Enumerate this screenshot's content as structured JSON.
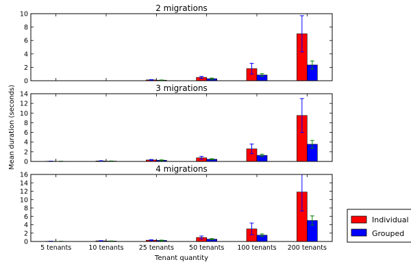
{
  "chart_data": {
    "type": "bar",
    "ylabel": "Mean duration (seconds)",
    "xlabel": "Tenant quantity",
    "categories": [
      "5 tenants",
      "10 tenants",
      "25 tenants",
      "50 tenants",
      "100 tenants",
      "200 tenants"
    ],
    "legend": {
      "position": "right",
      "items": [
        "Individual",
        "Grouped"
      ]
    },
    "colors": {
      "Individual": "#ff0000",
      "Grouped": "#0000ff",
      "error_individual": "#0000ff",
      "error_grouped": "#008000"
    },
    "panels": [
      {
        "title": "2 migrations",
        "ylim": [
          0,
          10
        ],
        "yticks": [
          0,
          2,
          4,
          6,
          8,
          10
        ],
        "series": [
          {
            "name": "Individual",
            "values": [
              0.0,
              0.0,
              0.12,
              0.5,
              1.8,
              7.0
            ],
            "errors": [
              0.0,
              0.0,
              0.05,
              0.15,
              0.8,
              2.7
            ]
          },
          {
            "name": "Grouped",
            "values": [
              0.0,
              0.0,
              0.08,
              0.3,
              0.85,
              2.35
            ],
            "errors": [
              0.0,
              0.0,
              0.03,
              0.1,
              0.2,
              0.6
            ]
          }
        ]
      },
      {
        "title": "3 migrations",
        "ylim": [
          0,
          14
        ],
        "yticks": [
          0,
          2,
          4,
          6,
          8,
          10,
          12,
          14
        ],
        "series": [
          {
            "name": "Individual",
            "values": [
              0.05,
              0.1,
              0.3,
              0.75,
              2.6,
              9.5
            ],
            "errors": [
              0.02,
              0.05,
              0.1,
              0.3,
              1.0,
              3.5
            ]
          },
          {
            "name": "Grouped",
            "values": [
              0.03,
              0.07,
              0.25,
              0.45,
              1.25,
              3.55
            ],
            "errors": [
              0.01,
              0.03,
              0.08,
              0.1,
              0.25,
              0.8
            ]
          }
        ]
      },
      {
        "title": "4 migrations",
        "ylim": [
          0,
          16
        ],
        "yticks": [
          0,
          2,
          4,
          6,
          8,
          10,
          12,
          14,
          16
        ],
        "series": [
          {
            "name": "Individual",
            "values": [
              0.05,
              0.15,
              0.3,
              0.95,
              3.0,
              11.8
            ],
            "errors": [
              0.02,
              0.05,
              0.1,
              0.35,
              1.4,
              4.5
            ]
          },
          {
            "name": "Grouped",
            "values": [
              0.03,
              0.1,
              0.25,
              0.55,
              1.5,
              5.0
            ],
            "errors": [
              0.01,
              0.03,
              0.08,
              0.15,
              0.3,
              1.1
            ]
          }
        ]
      }
    ]
  }
}
